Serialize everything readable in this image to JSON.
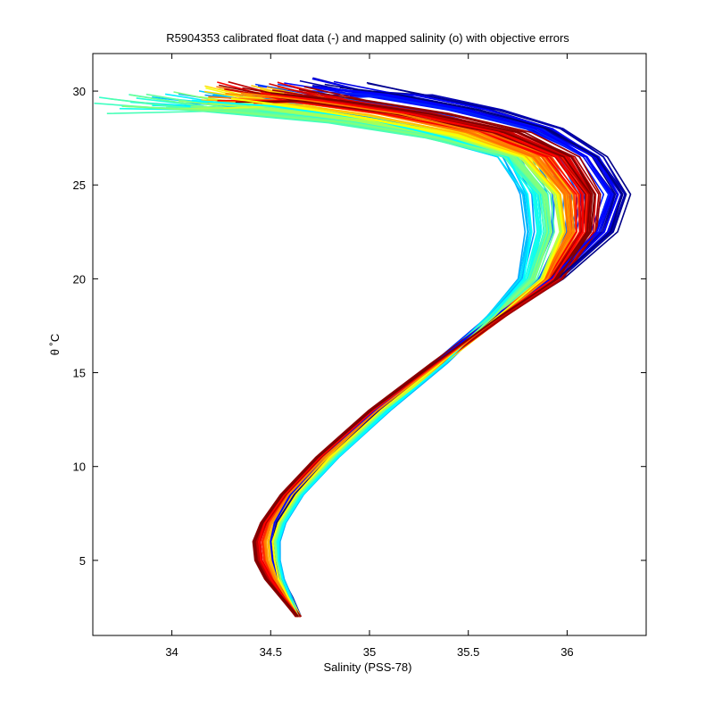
{
  "chart_data": {
    "type": "line",
    "title": "R5904353 calibrated float data (-) and mapped salinity (o) with objective errors",
    "xlabel": "Salinity (PSS-78)",
    "ylabel": "θ ˚C",
    "xlim": [
      33.6,
      36.4
    ],
    "ylim": [
      1,
      32
    ],
    "xticks": [
      34,
      34.5,
      35,
      35.5,
      36
    ],
    "yticks": [
      5,
      10,
      15,
      20,
      25,
      30
    ],
    "xtick_labels": [
      "34",
      "34.5",
      "35",
      "35.5",
      "36"
    ],
    "ytick_labels": [
      "5",
      "10",
      "15",
      "20",
      "25",
      "30"
    ],
    "grid": false,
    "legend": "none",
    "colormap": "jet",
    "profile_count": 120,
    "series": [
      {
        "color": "#00007f",
        "x": [
          34.64,
          34.6,
          34.55,
          34.52,
          34.51,
          34.53,
          34.62,
          34.8,
          35.05,
          35.35,
          35.65,
          35.95,
          36.22,
          36.28,
          36.15,
          35.9,
          35.55,
          35.15,
          34.85
        ],
        "y": [
          2.0,
          3.0,
          4.0,
          5.0,
          6.0,
          7.0,
          8.5,
          10.5,
          13.0,
          15.5,
          18.0,
          20.0,
          22.5,
          24.5,
          26.5,
          28.0,
          29.0,
          29.8,
          30.2
        ]
      },
      {
        "color": "#0000ff",
        "x": [
          34.64,
          34.59,
          34.54,
          34.51,
          34.5,
          34.52,
          34.6,
          34.77,
          35.03,
          35.33,
          35.63,
          35.92,
          36.15,
          36.22,
          36.1,
          35.85,
          35.5,
          35.1,
          34.75
        ],
        "y": [
          2.0,
          3.0,
          4.0,
          5.0,
          6.0,
          7.0,
          8.5,
          10.5,
          13.0,
          15.5,
          18.0,
          20.0,
          22.5,
          24.5,
          26.5,
          28.0,
          29.0,
          29.8,
          30.2
        ]
      },
      {
        "color": "#00ffff",
        "x": [
          34.64,
          34.6,
          34.56,
          34.54,
          34.54,
          34.57,
          34.66,
          34.84,
          35.1,
          35.38,
          35.62,
          35.78,
          35.82,
          35.8,
          35.7,
          35.4,
          35.0,
          34.5,
          34.1
        ],
        "y": [
          2.0,
          3.0,
          4.0,
          5.0,
          6.0,
          7.0,
          8.5,
          10.5,
          13.0,
          15.5,
          18.0,
          20.0,
          22.5,
          24.5,
          26.5,
          27.5,
          28.5,
          29.2,
          29.5
        ]
      },
      {
        "color": "#7fff7f",
        "x": [
          34.64,
          34.59,
          34.55,
          34.53,
          34.52,
          34.55,
          34.64,
          34.82,
          35.07,
          35.36,
          35.63,
          35.82,
          35.9,
          35.88,
          35.72,
          35.35,
          34.9,
          34.3,
          33.75
        ],
        "y": [
          2.0,
          3.0,
          4.0,
          5.0,
          6.0,
          7.0,
          8.5,
          10.5,
          13.0,
          15.5,
          18.0,
          20.0,
          22.5,
          24.5,
          26.5,
          27.5,
          28.3,
          28.9,
          29.2
        ]
      },
      {
        "color": "#ffff00",
        "x": [
          34.64,
          34.59,
          34.54,
          34.52,
          34.51,
          34.54,
          34.63,
          34.8,
          35.06,
          35.36,
          35.65,
          35.88,
          35.98,
          35.95,
          35.78,
          35.45,
          35.0,
          34.6,
          34.3
        ],
        "y": [
          2.0,
          3.0,
          4.0,
          5.0,
          6.0,
          7.0,
          8.5,
          10.5,
          13.0,
          15.5,
          18.0,
          20.0,
          22.5,
          24.5,
          26.5,
          27.6,
          28.5,
          29.2,
          29.6
        ]
      },
      {
        "color": "#ff7f00",
        "x": [
          34.64,
          34.58,
          34.52,
          34.48,
          34.47,
          34.5,
          34.59,
          34.77,
          35.04,
          35.35,
          35.66,
          35.9,
          36.02,
          36.0,
          35.85,
          35.55,
          35.15,
          34.7,
          34.35
        ],
        "y": [
          2.0,
          3.0,
          4.0,
          5.0,
          6.0,
          7.0,
          8.5,
          10.5,
          13.0,
          15.5,
          18.0,
          20.0,
          22.5,
          24.5,
          26.5,
          27.8,
          28.8,
          29.5,
          29.9
        ]
      },
      {
        "color": "#ff0000",
        "x": [
          34.64,
          34.57,
          34.5,
          34.45,
          34.44,
          34.47,
          34.57,
          34.75,
          35.02,
          35.34,
          35.66,
          35.93,
          36.08,
          36.08,
          35.95,
          35.65,
          35.2,
          34.75,
          34.45
        ],
        "y": [
          2.0,
          3.0,
          4.0,
          5.0,
          6.0,
          7.0,
          8.5,
          10.5,
          13.0,
          15.5,
          18.0,
          20.0,
          22.5,
          24.5,
          26.5,
          27.8,
          28.8,
          29.5,
          29.9
        ]
      },
      {
        "color": "#7f0000",
        "x": [
          34.64,
          34.56,
          34.48,
          34.43,
          34.42,
          34.46,
          34.56,
          34.74,
          35.01,
          35.33,
          35.66,
          35.95,
          36.12,
          36.14,
          36.02,
          35.75,
          35.3,
          34.85,
          34.5
        ],
        "y": [
          2.0,
          3.0,
          4.0,
          5.0,
          6.0,
          7.0,
          8.5,
          10.5,
          13.0,
          15.5,
          18.0,
          20.0,
          22.5,
          24.5,
          26.5,
          27.8,
          28.8,
          29.5,
          29.9
        ]
      }
    ]
  }
}
